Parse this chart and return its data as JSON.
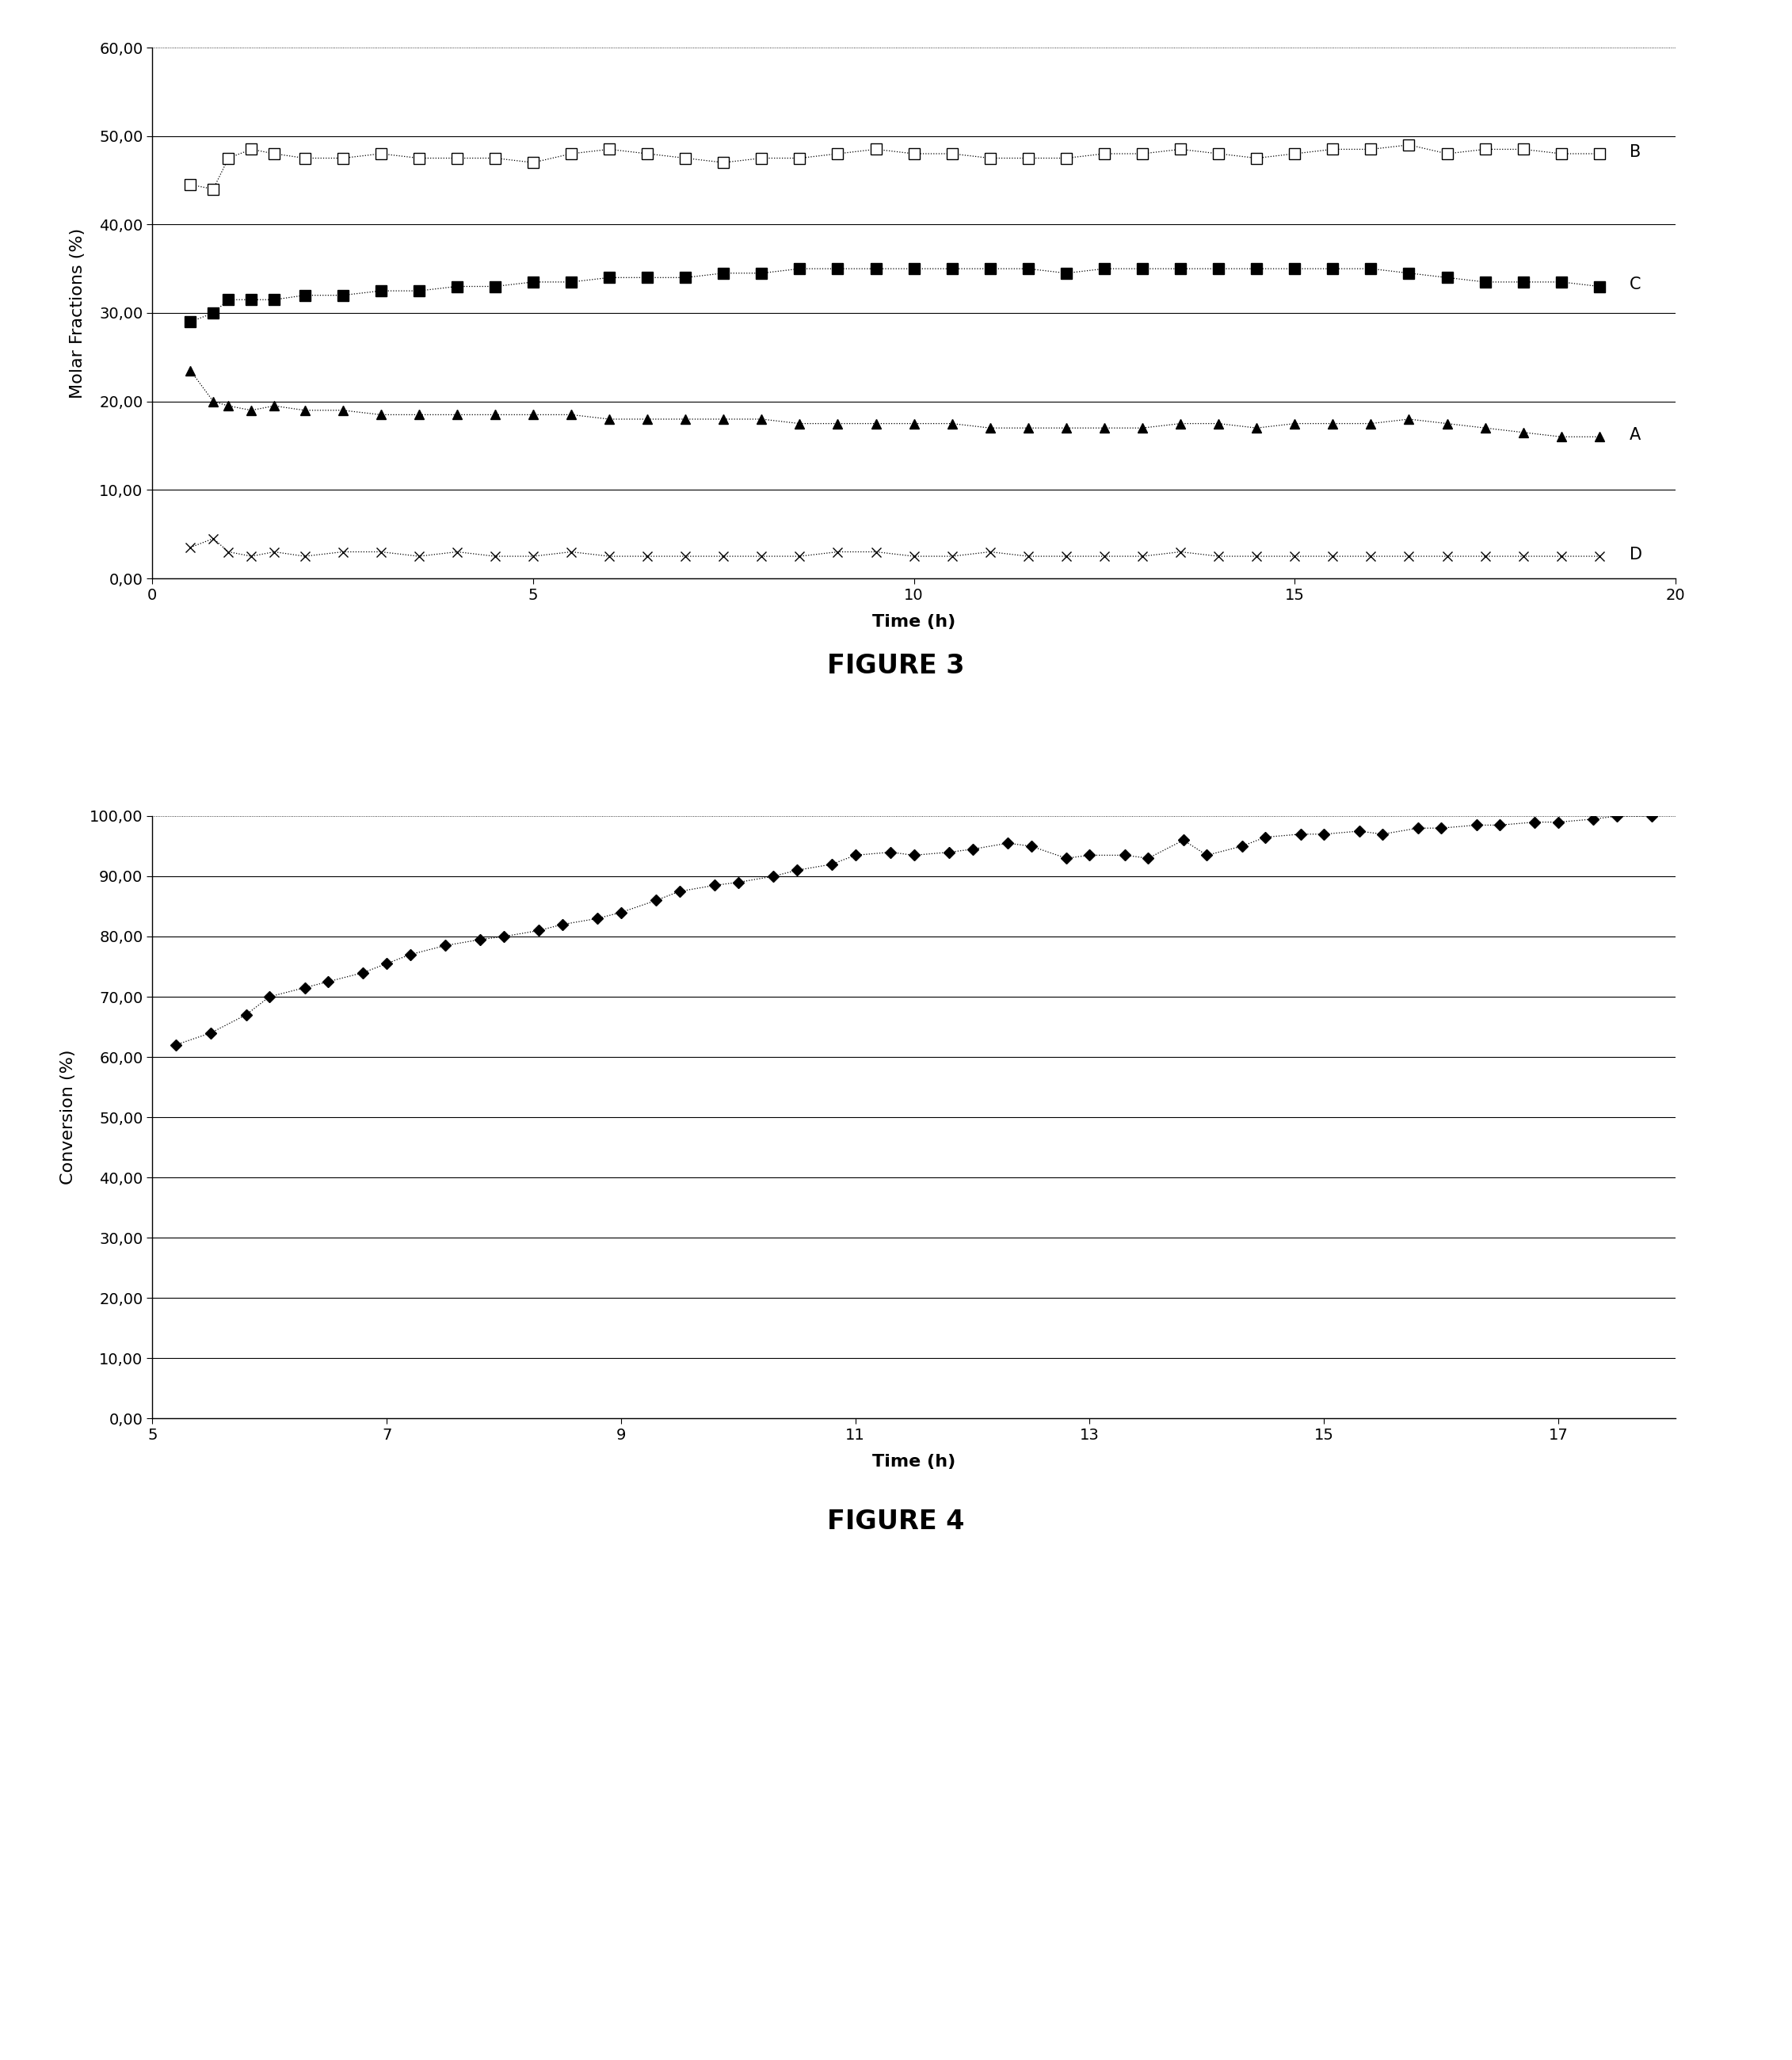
{
  "fig3": {
    "xlabel": "Time (h)",
    "ylabel": "Molar Fractions (%)",
    "xlim": [
      0,
      20
    ],
    "ylim": [
      0,
      60
    ],
    "yticks": [
      0,
      10,
      20,
      30,
      40,
      50,
      60
    ],
    "ytick_labels": [
      "0,00",
      "10,00",
      "20,00",
      "30,00",
      "40,00",
      "50,00",
      "60,00"
    ],
    "xticks": [
      0,
      5,
      10,
      15,
      20
    ],
    "series_B": {
      "x": [
        0.5,
        0.8,
        1.0,
        1.3,
        1.6,
        2.0,
        2.5,
        3.0,
        3.5,
        4.0,
        4.5,
        5.0,
        5.5,
        6.0,
        6.5,
        7.0,
        7.5,
        8.0,
        8.5,
        9.0,
        9.5,
        10.0,
        10.5,
        11.0,
        11.5,
        12.0,
        12.5,
        13.0,
        13.5,
        14.0,
        14.5,
        15.0,
        15.5,
        16.0,
        16.5,
        17.0,
        17.5,
        18.0,
        18.5,
        19.0
      ],
      "y": [
        44.5,
        44.0,
        47.5,
        48.5,
        48.0,
        47.5,
        47.5,
        48.0,
        47.5,
        47.5,
        47.5,
        47.0,
        48.0,
        48.5,
        48.0,
        47.5,
        47.0,
        47.5,
        47.5,
        48.0,
        48.5,
        48.0,
        48.0,
        47.5,
        47.5,
        47.5,
        48.0,
        48.0,
        48.5,
        48.0,
        47.5,
        48.0,
        48.5,
        48.5,
        49.0,
        48.0,
        48.5,
        48.5,
        48.0,
        48.0
      ],
      "label": "B",
      "marker": "s",
      "color": "black",
      "linestyle": ":"
    },
    "series_C": {
      "x": [
        0.5,
        0.8,
        1.0,
        1.3,
        1.6,
        2.0,
        2.5,
        3.0,
        3.5,
        4.0,
        4.5,
        5.0,
        5.5,
        6.0,
        6.5,
        7.0,
        7.5,
        8.0,
        8.5,
        9.0,
        9.5,
        10.0,
        10.5,
        11.0,
        11.5,
        12.0,
        12.5,
        13.0,
        13.5,
        14.0,
        14.5,
        15.0,
        15.5,
        16.0,
        16.5,
        17.0,
        17.5,
        18.0,
        18.5,
        19.0
      ],
      "y": [
        29.0,
        30.0,
        31.5,
        31.5,
        31.5,
        32.0,
        32.0,
        32.5,
        32.5,
        33.0,
        33.0,
        33.5,
        33.5,
        34.0,
        34.0,
        34.0,
        34.5,
        34.5,
        35.0,
        35.0,
        35.0,
        35.0,
        35.0,
        35.0,
        35.0,
        34.5,
        35.0,
        35.0,
        35.0,
        35.0,
        35.0,
        35.0,
        35.0,
        35.0,
        34.5,
        34.0,
        33.5,
        33.5,
        33.5,
        33.0
      ],
      "label": "C",
      "marker": "s",
      "color": "black",
      "linestyle": ":"
    },
    "series_A": {
      "x": [
        0.5,
        0.8,
        1.0,
        1.3,
        1.6,
        2.0,
        2.5,
        3.0,
        3.5,
        4.0,
        4.5,
        5.0,
        5.5,
        6.0,
        6.5,
        7.0,
        7.5,
        8.0,
        8.5,
        9.0,
        9.5,
        10.0,
        10.5,
        11.0,
        11.5,
        12.0,
        12.5,
        13.0,
        13.5,
        14.0,
        14.5,
        15.0,
        15.5,
        16.0,
        16.5,
        17.0,
        17.5,
        18.0,
        18.5,
        19.0
      ],
      "y": [
        23.5,
        20.0,
        19.5,
        19.0,
        19.5,
        19.0,
        19.0,
        18.5,
        18.5,
        18.5,
        18.5,
        18.5,
        18.5,
        18.0,
        18.0,
        18.0,
        18.0,
        18.0,
        17.5,
        17.5,
        17.5,
        17.5,
        17.5,
        17.0,
        17.0,
        17.0,
        17.0,
        17.0,
        17.5,
        17.5,
        17.0,
        17.5,
        17.5,
        17.5,
        18.0,
        17.5,
        17.0,
        16.5,
        16.0,
        16.0
      ],
      "label": "A",
      "marker": "^",
      "color": "black",
      "linestyle": ":"
    },
    "series_D": {
      "x": [
        0.5,
        0.8,
        1.0,
        1.3,
        1.6,
        2.0,
        2.5,
        3.0,
        3.5,
        4.0,
        4.5,
        5.0,
        5.5,
        6.0,
        6.5,
        7.0,
        7.5,
        8.0,
        8.5,
        9.0,
        9.5,
        10.0,
        10.5,
        11.0,
        11.5,
        12.0,
        12.5,
        13.0,
        13.5,
        14.0,
        14.5,
        15.0,
        15.5,
        16.0,
        16.5,
        17.0,
        17.5,
        18.0,
        18.5,
        19.0
      ],
      "y": [
        3.5,
        4.5,
        3.0,
        2.5,
        3.0,
        2.5,
        3.0,
        3.0,
        2.5,
        3.0,
        2.5,
        2.5,
        3.0,
        2.5,
        2.5,
        2.5,
        2.5,
        2.5,
        2.5,
        3.0,
        3.0,
        2.5,
        2.5,
        3.0,
        2.5,
        2.5,
        2.5,
        2.5,
        3.0,
        2.5,
        2.5,
        2.5,
        2.5,
        2.5,
        2.5,
        2.5,
        2.5,
        2.5,
        2.5,
        2.5
      ],
      "label": "D",
      "marker": "x",
      "color": "black",
      "linestyle": ":"
    },
    "title": "FIGURE 3",
    "solid_grid": [
      0,
      10,
      20,
      30,
      40,
      50
    ],
    "dotted_grid": [
      60
    ]
  },
  "fig4": {
    "xlabel": "Time (h)",
    "ylabel": "Conversion (%)",
    "xlim": [
      5,
      18
    ],
    "ylim": [
      0,
      100
    ],
    "yticks": [
      0,
      10,
      20,
      30,
      40,
      50,
      60,
      70,
      80,
      90,
      100
    ],
    "ytick_labels": [
      "0,00",
      "10,00",
      "20,00",
      "30,00",
      "40,00",
      "50,00",
      "60,00",
      "70,00",
      "80,00",
      "90,00",
      "100,00"
    ],
    "xticks": [
      5,
      7,
      9,
      11,
      13,
      15,
      17
    ],
    "series": {
      "x": [
        5.2,
        5.5,
        5.8,
        6.0,
        6.3,
        6.5,
        6.8,
        7.0,
        7.2,
        7.5,
        7.8,
        8.0,
        8.3,
        8.5,
        8.8,
        9.0,
        9.3,
        9.5,
        9.8,
        10.0,
        10.3,
        10.5,
        10.8,
        11.0,
        11.3,
        11.5,
        11.8,
        12.0,
        12.3,
        12.5,
        12.8,
        13.0,
        13.3,
        13.5,
        13.8,
        14.0,
        14.3,
        14.5,
        14.8,
        15.0,
        15.3,
        15.5,
        15.8,
        16.0,
        16.3,
        16.5,
        16.8,
        17.0,
        17.3,
        17.5,
        17.8
      ],
      "y": [
        62.0,
        64.0,
        67.0,
        70.0,
        71.5,
        72.5,
        74.0,
        75.5,
        77.0,
        78.5,
        79.5,
        80.0,
        81.0,
        82.0,
        83.0,
        84.0,
        86.0,
        87.5,
        88.5,
        89.0,
        90.0,
        91.0,
        92.0,
        93.5,
        94.0,
        93.5,
        94.0,
        94.5,
        95.5,
        95.0,
        93.0,
        93.5,
        93.5,
        93.0,
        96.0,
        93.5,
        95.0,
        96.5,
        97.0,
        97.0,
        97.5,
        97.0,
        98.0,
        98.0,
        98.5,
        98.5,
        99.0,
        99.0,
        99.5,
        100.0,
        100.0
      ],
      "marker": "D",
      "color": "black",
      "linestyle": ":"
    },
    "title": "FIGURE 4",
    "solid_grid": [
      0,
      10,
      20,
      30,
      40,
      50,
      60,
      70,
      80,
      90
    ],
    "dotted_grid": [
      100
    ]
  }
}
